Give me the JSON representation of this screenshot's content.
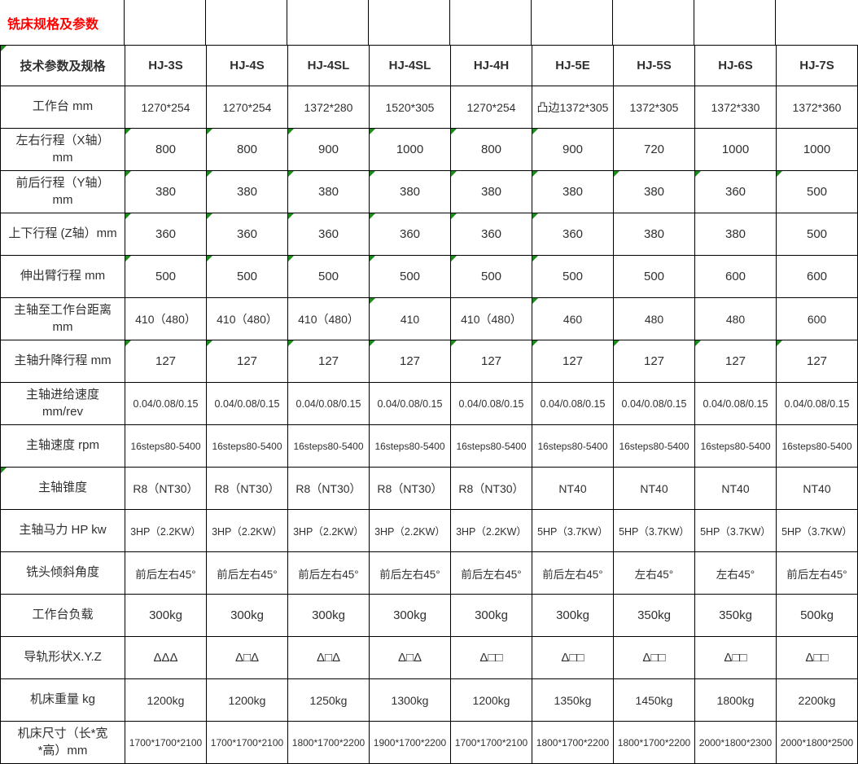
{
  "title": "铣床规格及参数",
  "colors": {
    "title_red": "#ff0000",
    "grid_line": "#000000",
    "cell_text": "#303030",
    "triangle_green": "#1e8a1e"
  },
  "header_triangle": true,
  "chart_data": {
    "type": "table",
    "title": "铣床规格及参数",
    "columns": [
      "技术参数及规格",
      "HJ-3S",
      "HJ-4S",
      "HJ-4SL",
      "HJ-4SL",
      "HJ-4H",
      "HJ-5E",
      "HJ-5S",
      "HJ-6S",
      "HJ-7S"
    ],
    "rows": [
      {
        "label": "工作台 mm",
        "size": 14,
        "values": [
          "1270*254",
          "1270*254",
          "1372*280",
          "1520*305",
          "1270*254",
          "凸边1372*305",
          "1372*305",
          "1372*330",
          "1372*360"
        ],
        "tri": []
      },
      {
        "label": "左右行程（X轴）\nmm",
        "size": 15,
        "values": [
          "800",
          "800",
          "900",
          "1000",
          "800",
          "900",
          "720",
          "1000",
          "1000"
        ],
        "tri": [
          0,
          1,
          2,
          3,
          4,
          5
        ]
      },
      {
        "label": "前后行程（Y轴）\nmm",
        "size": 15,
        "values": [
          "380",
          "380",
          "380",
          "380",
          "380",
          "380",
          "380",
          "360",
          "500"
        ],
        "tri": [
          0,
          1,
          2,
          3,
          4,
          5,
          6,
          7,
          8
        ]
      },
      {
        "label": "上下行程 (Z轴）mm",
        "size": 15,
        "values": [
          "360",
          "360",
          "360",
          "360",
          "360",
          "360",
          "380",
          "380",
          "500"
        ],
        "tri": [
          0,
          1,
          2,
          3,
          4,
          5
        ]
      },
      {
        "label": "伸出臂行程 mm",
        "size": 15,
        "values": [
          "500",
          "500",
          "500",
          "500",
          "500",
          "500",
          "500",
          "600",
          "600"
        ],
        "tri": [
          0,
          1,
          2,
          3,
          4,
          5
        ]
      },
      {
        "label": "主轴至工作台距离\nmm",
        "size": 14,
        "values": [
          "410（480）",
          "410（480）",
          "410（480）",
          "410",
          "410（480）",
          "460",
          "480",
          "480",
          "600"
        ],
        "tri": [
          3,
          5
        ]
      },
      {
        "label": "主轴升降行程 mm",
        "size": 15,
        "values": [
          "127",
          "127",
          "127",
          "127",
          "127",
          "127",
          "127",
          "127",
          "127"
        ],
        "tri": [
          0,
          1,
          2,
          3,
          4,
          5,
          6,
          7,
          8
        ]
      },
      {
        "label": "主轴进给速度\nmm/rev",
        "size": 12.5,
        "values": [
          "0.04/0.08/0.15",
          "0.04/0.08/0.15",
          "0.04/0.08/0.15",
          "0.04/0.08/0.15",
          "0.04/0.08/0.15",
          "0.04/0.08/0.15",
          "0.04/0.08/0.15",
          "0.04/0.08/0.15",
          "0.04/0.08/0.15"
        ],
        "tri": []
      },
      {
        "label": "主轴速度 rpm",
        "size": 12,
        "values": [
          "16steps80-5400",
          "16steps80-5400",
          "16steps80-5400",
          "16steps80-5400",
          "16steps80-5400",
          "16steps80-5400",
          "16steps80-5400",
          "16steps80-5400",
          "16steps80-5400"
        ],
        "tri": []
      },
      {
        "label": "主轴锥度",
        "size": 14,
        "label_tri": true,
        "values": [
          "R8（NT30）",
          "R8（NT30）",
          "R8（NT30）",
          "R8（NT30）",
          "R8（NT30）",
          "NT40",
          "NT40",
          "NT40",
          "NT40"
        ],
        "tri": []
      },
      {
        "label": "主轴马力 HP kw",
        "size": 12.5,
        "values": [
          "3HP（2.2KW）",
          "3HP（2.2KW）",
          "3HP（2.2KW）",
          "3HP（2.2KW）",
          "3HP（2.2KW）",
          "5HP（3.7KW）",
          "5HP（3.7KW）",
          "5HP（3.7KW）",
          "5HP（3.7KW）"
        ],
        "tri": []
      },
      {
        "label": "铣头倾斜角度",
        "size": 13.5,
        "values": [
          "前后左右45°",
          "前后左右45°",
          "前后左右45°",
          "前后左右45°",
          "前后左右45°",
          "前后左右45°",
          "左右45°",
          "左右45°",
          "前后左右45°"
        ],
        "tri": []
      },
      {
        "label": "工作台负载",
        "size": 15,
        "values": [
          "300kg",
          "300kg",
          "300kg",
          "300kg",
          "300kg",
          "300kg",
          "350kg",
          "350kg",
          "500kg"
        ],
        "tri": []
      },
      {
        "label": "导轨形状X.Y.Z",
        "size": 15,
        "values": [
          "ΔΔΔ",
          "Δ□Δ",
          "Δ□Δ",
          "Δ□Δ",
          "Δ□□",
          "Δ□□",
          "Δ□□",
          "Δ□□",
          "Δ□□"
        ],
        "tri": []
      },
      {
        "label": "机床重量 kg",
        "size": 14,
        "values": [
          "1200kg",
          "1200kg",
          "1250kg",
          "1300kg",
          "1200kg",
          "1350kg",
          "1450kg",
          "1800kg",
          "2200kg"
        ],
        "tri": []
      },
      {
        "label": "机床尺寸（长*宽\n*高）mm",
        "size": 12,
        "values": [
          "1700*1700*2100",
          "1700*1700*2100",
          "1800*1700*2200",
          "1900*1700*2200",
          "1700*1700*2100",
          "1800*1700*2200",
          "1800*1700*2200",
          "2000*1800*2300",
          "2000*1800*2500"
        ],
        "tri": []
      }
    ]
  }
}
